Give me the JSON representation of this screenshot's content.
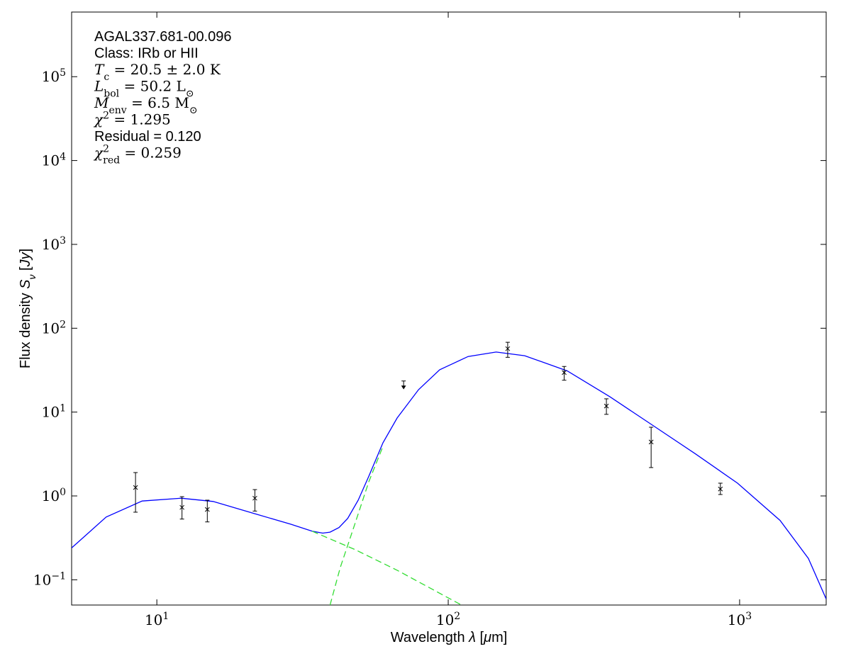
{
  "chart_data": {
    "type": "sed",
    "xscale": "log",
    "yscale": "log",
    "xlim": [
      5.1,
      1982
    ],
    "ylim": [
      0.05,
      590000
    ],
    "xticks": [
      {
        "value": 10,
        "label": "10",
        "exponent": "1"
      },
      {
        "value": 100,
        "label": "10",
        "exponent": "2"
      },
      {
        "value": 1000,
        "label": "10",
        "exponent": "3"
      }
    ],
    "yticks": [
      {
        "value": 0.1,
        "label": "10",
        "exponent": "−1"
      },
      {
        "value": 1,
        "label": "10",
        "exponent": "0"
      },
      {
        "value": 10,
        "label": "10",
        "exponent": "1"
      },
      {
        "value": 100,
        "label": "10",
        "exponent": "2"
      },
      {
        "value": 1000,
        "label": "10",
        "exponent": "3"
      },
      {
        "value": 10000,
        "label": "10",
        "exponent": "4"
      },
      {
        "value": 100000,
        "label": "10",
        "exponent": "5"
      }
    ],
    "xlabel": [
      {
        "text": "Wavelength "
      },
      {
        "text": "λ",
        "italic": true
      },
      {
        "text": " ["
      },
      {
        "text": "μ",
        "italic": true
      },
      {
        "text": "m]"
      }
    ],
    "ylabel": [
      {
        "text": "Flux density "
      },
      {
        "text": "S",
        "italic": true
      },
      {
        "text": "ν",
        "italic": true,
        "shift": "sub"
      },
      {
        "text": " ["
      },
      {
        "text": "Jy",
        "italic": true
      },
      {
        "text": "]"
      }
    ],
    "annotations": [
      {
        "font": "sans",
        "parts": [
          {
            "text": "AGAL337.681-00.096"
          }
        ]
      },
      {
        "font": "sans",
        "parts": [
          {
            "text": "Class: IRb or HII"
          }
        ]
      },
      {
        "font": "serif",
        "parts": [
          {
            "text": "T",
            "italic": true
          },
          {
            "text": "c",
            "shift": "sub"
          },
          {
            "text": " = 20.5 ± 2.0 K"
          }
        ]
      },
      {
        "font": "serif",
        "parts": [
          {
            "text": "L",
            "italic": true
          },
          {
            "text": "bol",
            "shift": "sub"
          },
          {
            "text": " = 50.2 L"
          },
          {
            "text": "⊙",
            "shift": "sub"
          }
        ]
      },
      {
        "font": "serif",
        "parts": [
          {
            "text": "M",
            "italic": true
          },
          {
            "text": "env",
            "shift": "sub"
          },
          {
            "text": " = 6.5 M"
          },
          {
            "text": "⊙",
            "shift": "sub"
          }
        ]
      },
      {
        "font": "serif",
        "parts": [
          {
            "text": "χ",
            "italic": true
          },
          {
            "text": "2",
            "shift": "super"
          },
          {
            "text": " = 1.295"
          }
        ]
      },
      {
        "font": "sans",
        "parts": [
          {
            "text": "Residual = 0.120"
          }
        ]
      },
      {
        "font": "serif",
        "parts": [
          {
            "text": "χ",
            "italic": true
          },
          {
            "text": "2",
            "shift": "super"
          },
          {
            "text": "red",
            "shift": "sub",
            "stacked": true
          },
          {
            "text": " = 0.259"
          }
        ]
      }
    ],
    "lines": [
      {
        "color": "#0000ff",
        "dash": false,
        "x": [
          5.1,
          6.7,
          8.9,
          12.1,
          15.6,
          21.8,
          28.8,
          34.1,
          37.1,
          39.3,
          42.2,
          45.2,
          49.1,
          53.4,
          59.7,
          66.8,
          79.1,
          93.5,
          117,
          146,
          183,
          256,
          359,
          502,
          703,
          984,
          1377,
          1722,
          1982
        ],
        "values": [
          0.24,
          0.56,
          0.87,
          0.94,
          0.86,
          0.61,
          0.46,
          0.38,
          0.36,
          0.37,
          0.42,
          0.54,
          0.89,
          1.72,
          4.3,
          8.5,
          18.5,
          32,
          46,
          52,
          47,
          31,
          15.2,
          7.0,
          3.2,
          1.42,
          0.51,
          0.18,
          0.059
        ]
      },
      {
        "color": "#33dd33",
        "dash": true,
        "x": [
          34.1,
          47.8,
          66.8,
          111
        ],
        "values": [
          0.38,
          0.23,
          0.13,
          0.05
        ]
      },
      {
        "color": "#33dd33",
        "dash": true,
        "x": [
          39.3,
          42.6,
          47.8,
          53.4,
          59.7
        ],
        "values": [
          0.05,
          0.14,
          0.46,
          1.48,
          3.9
        ]
      }
    ],
    "points": {
      "color": "#000000",
      "x": [
        8.45,
        12.2,
        14.9,
        21.7,
        160,
        250,
        349,
        497,
        859
      ],
      "values": [
        1.26,
        0.73,
        0.69,
        0.94,
        57,
        29.6,
        11.8,
        4.4,
        1.21
      ],
      "err_low": [
        0.64,
        0.53,
        0.49,
        0.66,
        45,
        24,
        9.4,
        2.18,
        1.04
      ],
      "err_high": [
        1.9,
        0.98,
        0.89,
        1.19,
        68,
        35,
        14.4,
        6.6,
        1.42
      ]
    },
    "upper_limits": {
      "color": "#000000",
      "x": [
        70.3
      ],
      "values": [
        23.5
      ]
    }
  }
}
